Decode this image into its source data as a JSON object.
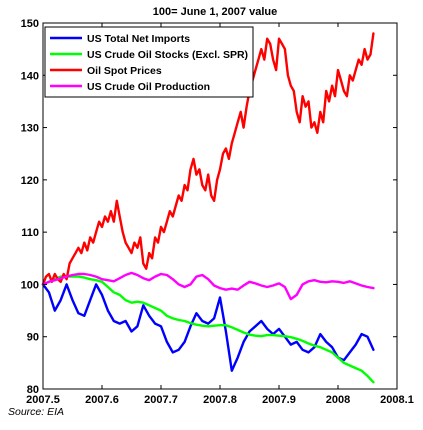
{
  "source_note": "Source: EIA",
  "chart_data": {
    "type": "line",
    "title": "100= June 1, 2007 value",
    "xlabel": "",
    "ylabel": "",
    "xlim": [
      2007.5,
      2008.1
    ],
    "ylim": [
      80,
      150
    ],
    "xticks": [
      2007.5,
      2007.6,
      2007.7,
      2007.8,
      2007.9,
      2008,
      2008.1
    ],
    "xtick_labels": [
      "2007.5",
      "2007.6",
      "2007.7",
      "2007.8",
      "2007.9",
      "2008",
      "2008.1"
    ],
    "yticks": [
      80,
      90,
      100,
      110,
      120,
      130,
      140,
      150
    ],
    "ytick_labels": [
      "80",
      "90",
      "100",
      "110",
      "120",
      "130",
      "140",
      "150"
    ],
    "grid": false,
    "legend_position": "top-left",
    "series": [
      {
        "name": "US Total Net Imports",
        "color": "#0000ff",
        "x": [
          2007.5,
          2007.51,
          2007.52,
          2007.53,
          2007.54,
          2007.55,
          2007.56,
          2007.57,
          2007.58,
          2007.59,
          2007.6,
          2007.61,
          2007.62,
          2007.63,
          2007.64,
          2007.65,
          2007.66,
          2007.67,
          2007.68,
          2007.69,
          2007.7,
          2007.71,
          2007.72,
          2007.73,
          2007.74,
          2007.75,
          2007.76,
          2007.77,
          2007.78,
          2007.79,
          2007.8,
          2007.81,
          2007.82,
          2007.83,
          2007.84,
          2007.85,
          2007.86,
          2007.87,
          2007.88,
          2007.89,
          2007.9,
          2007.91,
          2007.92,
          2007.93,
          2007.94,
          2007.95,
          2007.96,
          2007.97,
          2007.98,
          2007.99,
          2008.0,
          2008.01,
          2008.02,
          2008.03,
          2008.04,
          2008.05,
          2008.06
        ],
        "values": [
          100,
          98.5,
          95,
          97,
          100,
          97,
          94.5,
          94,
          97,
          100,
          98,
          95,
          93,
          92.5,
          93,
          91,
          92,
          96,
          94,
          92.5,
          92,
          89,
          87,
          87.5,
          89,
          92,
          94.5,
          93,
          92.5,
          93.5,
          97.5,
          91,
          83.5,
          86,
          89,
          91,
          92,
          93,
          91.5,
          90.5,
          91.5,
          90,
          88.5,
          89,
          87.5,
          87,
          88,
          90.5,
          89,
          88,
          86,
          85.5,
          87,
          88.5,
          90.5,
          90,
          87.5
        ]
      },
      {
        "name": "US Crude Oil Stocks (Excl. SPR)",
        "color": "#00ff00",
        "x": [
          2007.5,
          2007.51,
          2007.52,
          2007.53,
          2007.54,
          2007.55,
          2007.56,
          2007.57,
          2007.58,
          2007.59,
          2007.6,
          2007.61,
          2007.62,
          2007.63,
          2007.64,
          2007.65,
          2007.66,
          2007.67,
          2007.68,
          2007.69,
          2007.7,
          2007.71,
          2007.72,
          2007.73,
          2007.74,
          2007.75,
          2007.76,
          2007.77,
          2007.78,
          2007.79,
          2007.8,
          2007.81,
          2007.82,
          2007.83,
          2007.84,
          2007.85,
          2007.86,
          2007.87,
          2007.88,
          2007.89,
          2007.9,
          2007.91,
          2007.92,
          2007.93,
          2007.94,
          2007.95,
          2007.96,
          2007.97,
          2007.98,
          2007.99,
          2008.0,
          2008.01,
          2008.02,
          2008.03,
          2008.04,
          2008.05,
          2008.06
        ],
        "values": [
          100,
          100.5,
          101,
          101.5,
          101.5,
          101.5,
          101.5,
          101.3,
          101,
          100.8,
          100.5,
          99.5,
          98.5,
          98,
          97,
          96.5,
          96.7,
          96.5,
          96,
          95.5,
          95,
          94,
          93.5,
          93.2,
          93,
          92.6,
          92.3,
          92.1,
          92,
          92.1,
          92.2,
          92.2,
          91.8,
          91.3,
          90.8,
          90.4,
          90.2,
          90.1,
          90.3,
          90.3,
          90.2,
          90.1,
          89.9,
          89.6,
          89.2,
          88.7,
          88.3,
          88,
          87.5,
          87,
          86,
          85,
          84.5,
          84,
          83.5,
          82.5,
          81.3
        ]
      },
      {
        "name": "Oil Spot Prices",
        "color": "#ff0000",
        "x": [
          2007.5,
          2007.505,
          2007.51,
          2007.515,
          2007.52,
          2007.525,
          2007.53,
          2007.535,
          2007.54,
          2007.545,
          2007.55,
          2007.555,
          2007.56,
          2007.565,
          2007.57,
          2007.575,
          2007.58,
          2007.585,
          2007.59,
          2007.595,
          2007.6,
          2007.605,
          2007.61,
          2007.615,
          2007.62,
          2007.625,
          2007.63,
          2007.635,
          2007.64,
          2007.645,
          2007.65,
          2007.655,
          2007.66,
          2007.665,
          2007.67,
          2007.675,
          2007.68,
          2007.685,
          2007.69,
          2007.695,
          2007.7,
          2007.705,
          2007.71,
          2007.715,
          2007.72,
          2007.725,
          2007.73,
          2007.735,
          2007.74,
          2007.745,
          2007.75,
          2007.755,
          2007.76,
          2007.765,
          2007.77,
          2007.775,
          2007.78,
          2007.785,
          2007.79,
          2007.795,
          2007.8,
          2007.805,
          2007.81,
          2007.815,
          2007.82,
          2007.825,
          2007.83,
          2007.835,
          2007.84,
          2007.845,
          2007.85,
          2007.855,
          2007.86,
          2007.865,
          2007.87,
          2007.875,
          2007.88,
          2007.885,
          2007.89,
          2007.895,
          2007.9,
          2007.905,
          2007.91,
          2007.915,
          2007.92,
          2007.925,
          2007.93,
          2007.935,
          2007.94,
          2007.945,
          2007.95,
          2007.955,
          2007.96,
          2007.965,
          2007.97,
          2007.975,
          2007.98,
          2007.985,
          2007.99,
          2007.995,
          2008.0,
          2008.005,
          2008.01,
          2008.015,
          2008.02,
          2008.025,
          2008.03,
          2008.035,
          2008.04,
          2008.045,
          2008.05,
          2008.055,
          2008.06
        ],
        "values": [
          100,
          101.5,
          102,
          100.5,
          102,
          101,
          100.5,
          102,
          101,
          104,
          105,
          106,
          107,
          106,
          108,
          106.5,
          109,
          108,
          110,
          112,
          111,
          113,
          112,
          114,
          112,
          116,
          113,
          110,
          108,
          107,
          106,
          108,
          107,
          109,
          104,
          103,
          106,
          105,
          109,
          108,
          111,
          110,
          112,
          114,
          113,
          115,
          117,
          116,
          119,
          118,
          122,
          124,
          121,
          122,
          119,
          118,
          121,
          117,
          116,
          120,
          122,
          125,
          126,
          124,
          127,
          129,
          131,
          133,
          130,
          134,
          137,
          139,
          141,
          143,
          145,
          143,
          147,
          146,
          143,
          141,
          147,
          146,
          145,
          140,
          138,
          137,
          133,
          131,
          136,
          134,
          135,
          130,
          131,
          129,
          133,
          131,
          137,
          135,
          138,
          136,
          141,
          139,
          137,
          136,
          140,
          139,
          141,
          143,
          142,
          145,
          143,
          144,
          148
        ]
      },
      {
        "name": "US Crude Oil Production",
        "color": "#ff00ff",
        "x": [
          2007.5,
          2007.51,
          2007.52,
          2007.53,
          2007.54,
          2007.55,
          2007.56,
          2007.57,
          2007.58,
          2007.59,
          2007.6,
          2007.61,
          2007.62,
          2007.63,
          2007.64,
          2007.65,
          2007.66,
          2007.67,
          2007.68,
          2007.69,
          2007.7,
          2007.71,
          2007.72,
          2007.73,
          2007.74,
          2007.75,
          2007.76,
          2007.77,
          2007.78,
          2007.79,
          2007.8,
          2007.81,
          2007.82,
          2007.83,
          2007.84,
          2007.85,
          2007.86,
          2007.87,
          2007.88,
          2007.89,
          2007.9,
          2007.91,
          2007.92,
          2007.93,
          2007.94,
          2007.95,
          2007.96,
          2007.97,
          2007.98,
          2007.99,
          2008.0,
          2008.01,
          2008.02,
          2008.03,
          2008.04,
          2008.05,
          2008.06
        ],
        "values": [
          100,
          100.5,
          100.8,
          101.2,
          101.5,
          101.8,
          102,
          102,
          101.8,
          101.5,
          101,
          100.8,
          100.6,
          101.2,
          101.8,
          102.2,
          101.8,
          101.2,
          100.8,
          101.5,
          102,
          101.8,
          101,
          100,
          99.5,
          100,
          101.5,
          101.8,
          101,
          99.8,
          99.3,
          99,
          99.2,
          99,
          99.8,
          100.5,
          100.2,
          99.8,
          99.5,
          99.8,
          100.2,
          99.5,
          97.2,
          98,
          100,
          100.6,
          100.8,
          100.5,
          100.4,
          100.6,
          100.5,
          100.3,
          100.6,
          100.2,
          99.8,
          99.5,
          99.3
        ]
      }
    ]
  }
}
